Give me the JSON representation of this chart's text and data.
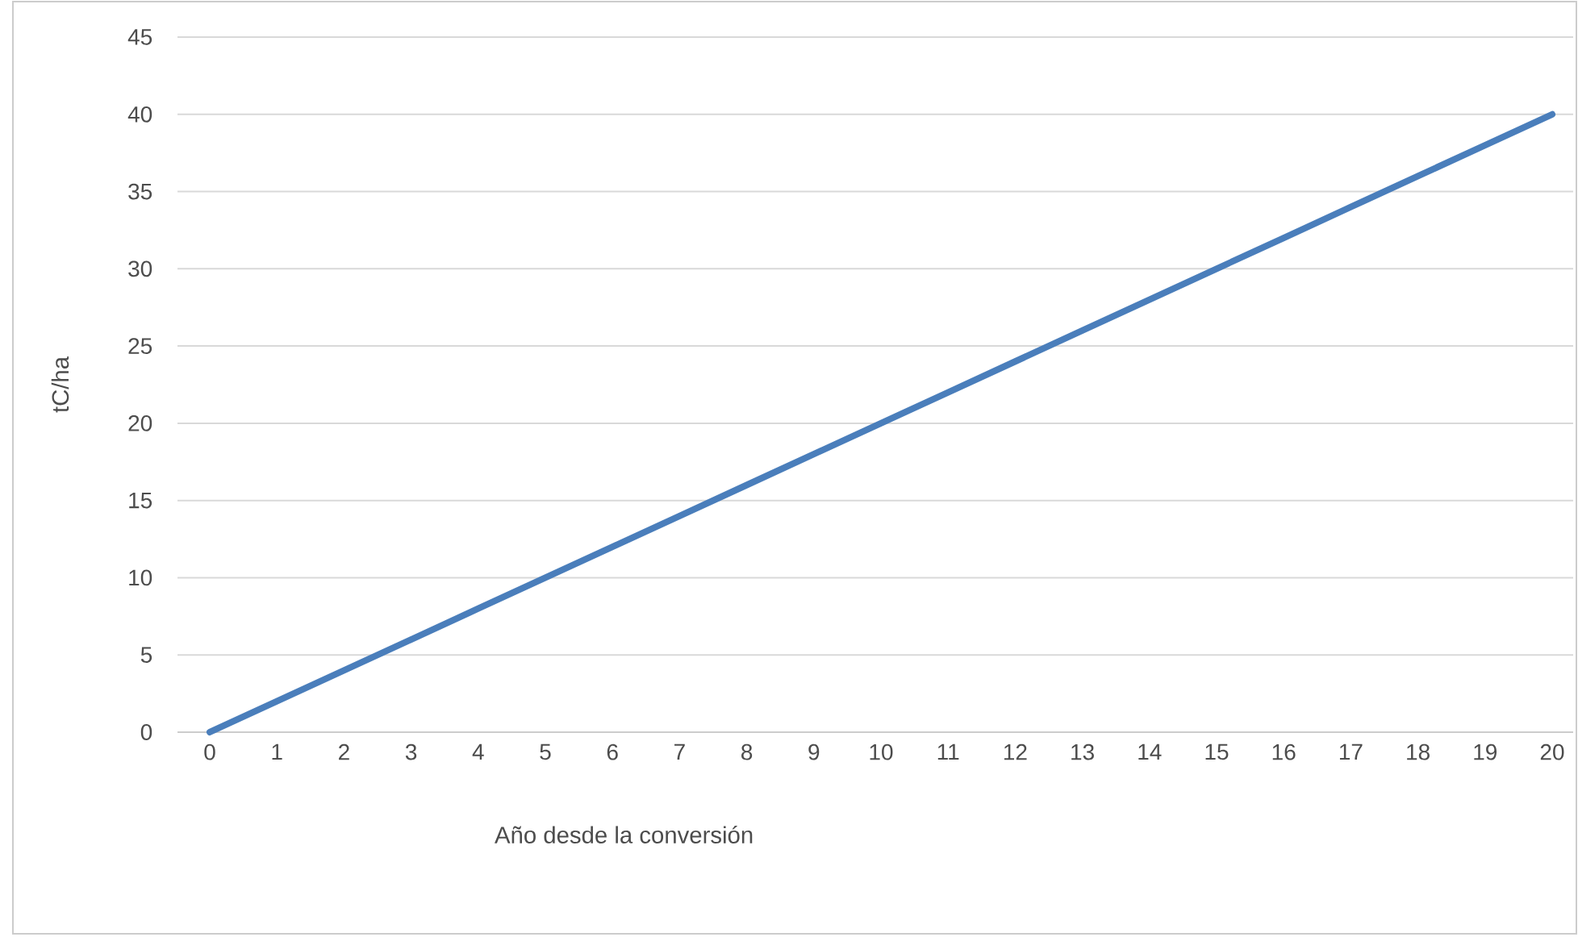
{
  "chart_data": {
    "type": "line",
    "xlabel": "Año desde la conversión",
    "ylabel": "tC/ha",
    "categories": [
      "0",
      "1",
      "2",
      "3",
      "4",
      "5",
      "6",
      "7",
      "8",
      "9",
      "10",
      "11",
      "12",
      "13",
      "14",
      "15",
      "16",
      "17",
      "18",
      "19",
      "20"
    ],
    "series": [
      {
        "color": "#4a7ebb",
        "values": [
          0,
          2,
          4,
          6,
          8,
          10,
          12,
          14,
          16,
          18,
          20,
          22,
          24,
          26,
          28,
          30,
          32,
          34,
          36,
          38,
          40
        ]
      }
    ],
    "ylim": [
      0,
      45
    ],
    "yticks": [
      0,
      5,
      10,
      15,
      20,
      25,
      30,
      35,
      40,
      45
    ],
    "grid": "y",
    "line_style": "solid"
  }
}
